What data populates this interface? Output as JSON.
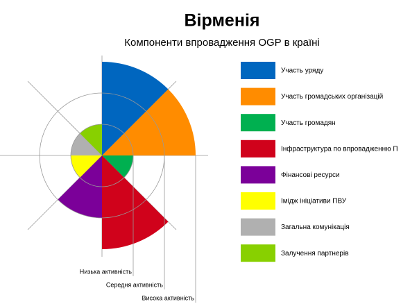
{
  "chart_data": {
    "type": "polar_area",
    "title": "Вірменія",
    "subtitle": "Компоненти впровадження OGP в країні",
    "categories": [
      "Участь уряду",
      "Участь громадських організацій",
      "Участь громадян",
      "Інфраструктура по впровадженню П",
      "Фінансові ресурси",
      "Імідж ініціативи ПВУ",
      "Загальна комунікація",
      "Залучення партнерів"
    ],
    "values": [
      3,
      3,
      1,
      3,
      2,
      1,
      1,
      1
    ],
    "colors": [
      "#0066bf",
      "#ff8c00",
      "#00b050",
      "#d0021b",
      "#7b0099",
      "#ffff00",
      "#b0b0b0",
      "#88d000"
    ],
    "rlim": [
      0,
      3
    ],
    "rticks": [
      {
        "value": 1,
        "label": "Низька активність"
      },
      {
        "value": 2,
        "label": "Середня активність"
      },
      {
        "value": 3,
        "label": "Висока активність"
      }
    ],
    "legend": "right"
  }
}
